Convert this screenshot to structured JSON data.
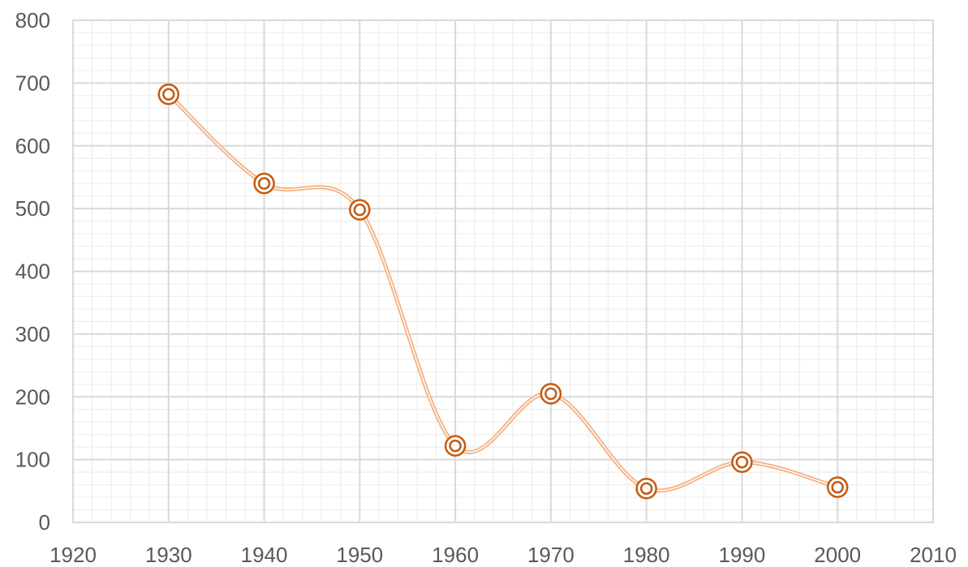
{
  "chart_data": {
    "type": "line",
    "title": "",
    "xlabel": "",
    "ylabel": "",
    "x": [
      1930,
      1940,
      1950,
      1960,
      1970,
      1980,
      1990,
      2000
    ],
    "series": [
      {
        "values": [
          682,
          540,
          498,
          122,
          205,
          54,
          96,
          56
        ]
      }
    ],
    "xlim": [
      1920,
      2010
    ],
    "ylim": [
      0,
      800
    ],
    "x_ticks": [
      "1920",
      "1930",
      "1940",
      "1950",
      "1960",
      "1970",
      "1980",
      "1990",
      "2000",
      "2010"
    ],
    "y_ticks": [
      "0",
      "100",
      "200",
      "300",
      "400",
      "500",
      "600",
      "700",
      "800"
    ],
    "x_tick_values": [
      1920,
      1930,
      1940,
      1950,
      1960,
      1970,
      1980,
      1990,
      2000,
      2010
    ],
    "y_tick_values": [
      0,
      100,
      200,
      300,
      400,
      500,
      600,
      700,
      800
    ],
    "grid": true,
    "minor_grid": true,
    "smooth": true,
    "legend": "none",
    "colors": {
      "line": "#f4b183",
      "marker": "#c55a11",
      "major_grid": "#d9d9d9",
      "minor_grid": "#eeeeee",
      "tick_text": "#595959"
    }
  }
}
